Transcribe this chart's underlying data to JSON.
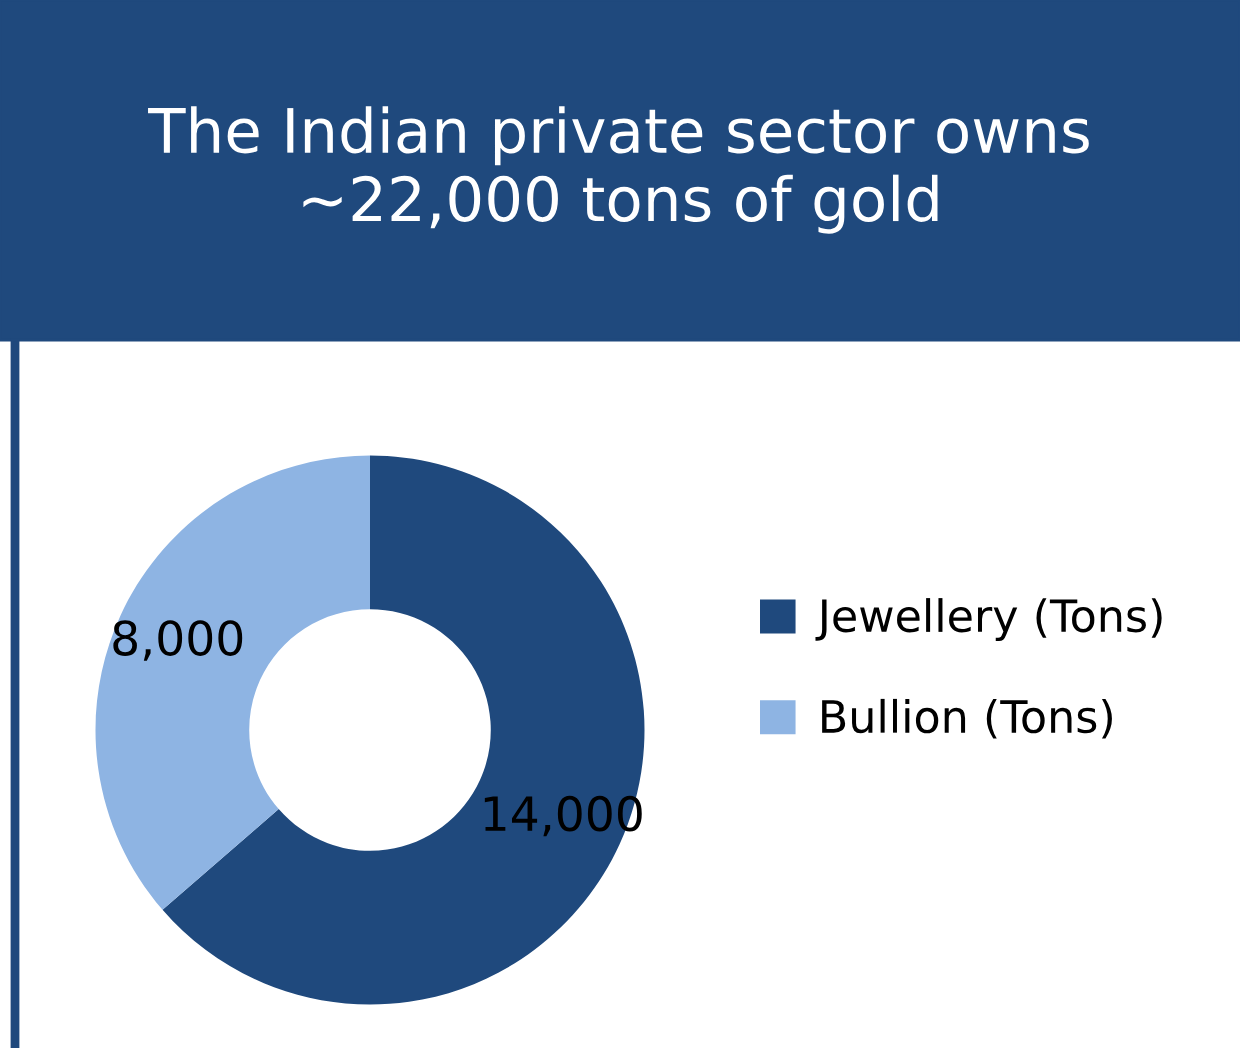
{
  "chart_data": {
    "type": "donut",
    "title": "The Indian private sector owns\n~22,000 tons of gold",
    "categories": [
      "Jewellery (Tons)",
      "Bullion (Tons)"
    ],
    "values": [
      14000,
      8000
    ],
    "colors": [
      "#1f497d",
      "#8eb4e3"
    ],
    "value_labels": [
      "14,000",
      "8,000"
    ],
    "legend": "right"
  }
}
